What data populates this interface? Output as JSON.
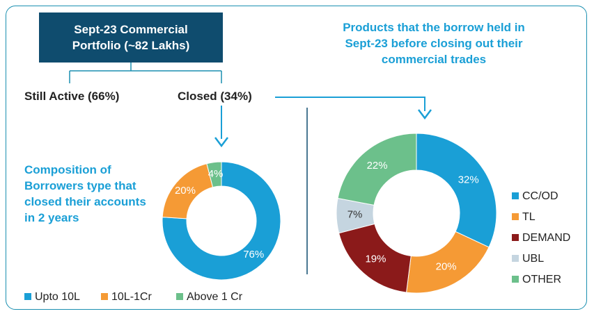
{
  "header": {
    "title": "Sept-23 Commercial Portfolio (~82 Lakhs)"
  },
  "branches": [
    "Still Active (66%)",
    "Closed (34%)"
  ],
  "chart_data": [
    {
      "type": "pie",
      "title": "Composition of Borrowers type that closed their accounts in 2 years",
      "categories": [
        "Upto 10L",
        "10L-1Cr",
        "Above 1 Cr"
      ],
      "values": [
        76,
        20,
        4
      ],
      "value_labels": [
        "76%",
        "20%",
        "4%"
      ],
      "colors": [
        "#1a9fd6",
        "#f59a35",
        "#6cc08b"
      ],
      "legend": "bottom"
    },
    {
      "type": "pie",
      "title": "Products that the borrow held in Sept-23 before closing out their commercial trades",
      "categories": [
        "CC/OD",
        "TL",
        "DEMAND",
        "UBL",
        "OTHER"
      ],
      "values": [
        32,
        20,
        19,
        7,
        22
      ],
      "value_labels": [
        "32%",
        "20%",
        "19%",
        "7%",
        "22%"
      ],
      "colors": [
        "#1a9fd6",
        "#f59a35",
        "#8b1a1a",
        "#c5d5e0",
        "#6cc08b"
      ],
      "legend": "right"
    }
  ]
}
